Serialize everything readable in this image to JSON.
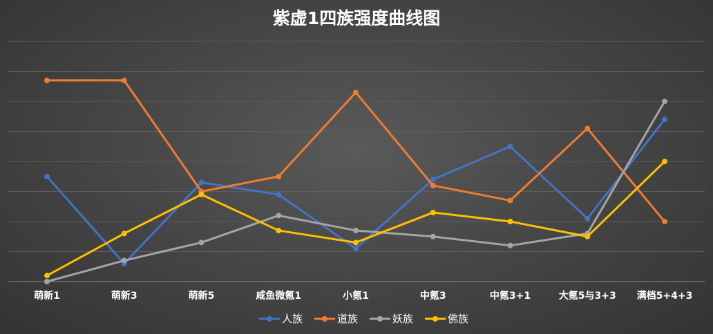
{
  "chart_data": {
    "type": "line",
    "title": "紫虚1四族强度曲线图",
    "xlabel": "",
    "ylabel": "",
    "categories": [
      "萌新1",
      "萌新3",
      "萌新5",
      "咸鱼微氪1",
      "小氪1",
      "中氪3",
      "中氪3+1",
      "大氪5与3+3",
      "满档5+4+3"
    ],
    "ylim": [
      0,
      8
    ],
    "grid": true,
    "legend_position": "bottom",
    "series": [
      {
        "name": "人族",
        "color": "#4472c4",
        "values": [
          3.5,
          0.6,
          3.3,
          2.9,
          1.1,
          3.4,
          4.5,
          2.1,
          5.4
        ]
      },
      {
        "name": "道族",
        "color": "#ed7d31",
        "values": [
          6.7,
          6.7,
          3.0,
          3.5,
          6.3,
          3.2,
          2.7,
          5.1,
          2.0
        ]
      },
      {
        "name": "妖族",
        "color": "#a5a5a5",
        "values": [
          0.0,
          0.7,
          1.3,
          2.2,
          1.7,
          1.5,
          1.2,
          1.6,
          6.0
        ]
      },
      {
        "name": "佛族",
        "color": "#ffc000",
        "values": [
          0.2,
          1.6,
          2.9,
          1.7,
          1.3,
          2.3,
          2.0,
          1.5,
          4.0
        ]
      }
    ]
  }
}
